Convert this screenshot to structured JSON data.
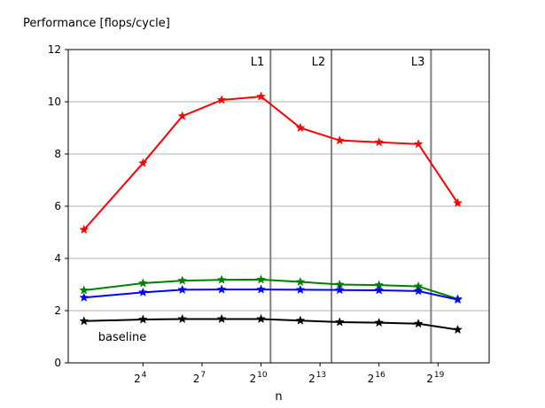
{
  "chart_data": {
    "type": "line",
    "title": "",
    "ylabel": "Performance [flops/cycle]",
    "xlabel": "n",
    "x_scale": "log2",
    "ylim": [
      0,
      12
    ],
    "y_ticks": [
      0,
      2,
      4,
      6,
      8,
      10,
      12
    ],
    "x_tick_exponents": [
      "4",
      "7",
      "10",
      "13",
      "16",
      "19"
    ],
    "x_tick_base": "2",
    "grid": "horizontal",
    "x": [
      2,
      16,
      64,
      256,
      1024,
      4096,
      16384,
      65536,
      262144,
      1048576
    ],
    "series": [
      {
        "color": "#ff0000",
        "marker": "star",
        "values": [
          5.1,
          7.65,
          9.45,
          10.07,
          10.2,
          9.0,
          8.52,
          8.45,
          8.38,
          6.12
        ]
      },
      {
        "color": "#008000",
        "marker": "star",
        "values": [
          2.78,
          3.05,
          3.15,
          3.18,
          3.19,
          3.1,
          3.0,
          2.98,
          2.93,
          2.45
        ]
      },
      {
        "color": "#0000ff",
        "marker": "star",
        "values": [
          2.5,
          2.7,
          2.8,
          2.81,
          2.81,
          2.8,
          2.79,
          2.78,
          2.75,
          2.42
        ]
      },
      {
        "color": "#000000",
        "marker": "star",
        "values": [
          1.6,
          1.66,
          1.68,
          1.68,
          1.68,
          1.62,
          1.56,
          1.54,
          1.5,
          1.27
        ]
      }
    ],
    "annotations": [
      {
        "text": "baseline",
        "series_index": 3
      }
    ],
    "vertical_lines": [
      {
        "label": "L1",
        "x": 1433
      },
      {
        "label": "L2",
        "x": 12288
      },
      {
        "label": "L3",
        "x": 409600
      }
    ],
    "vline_color": "#808080"
  }
}
